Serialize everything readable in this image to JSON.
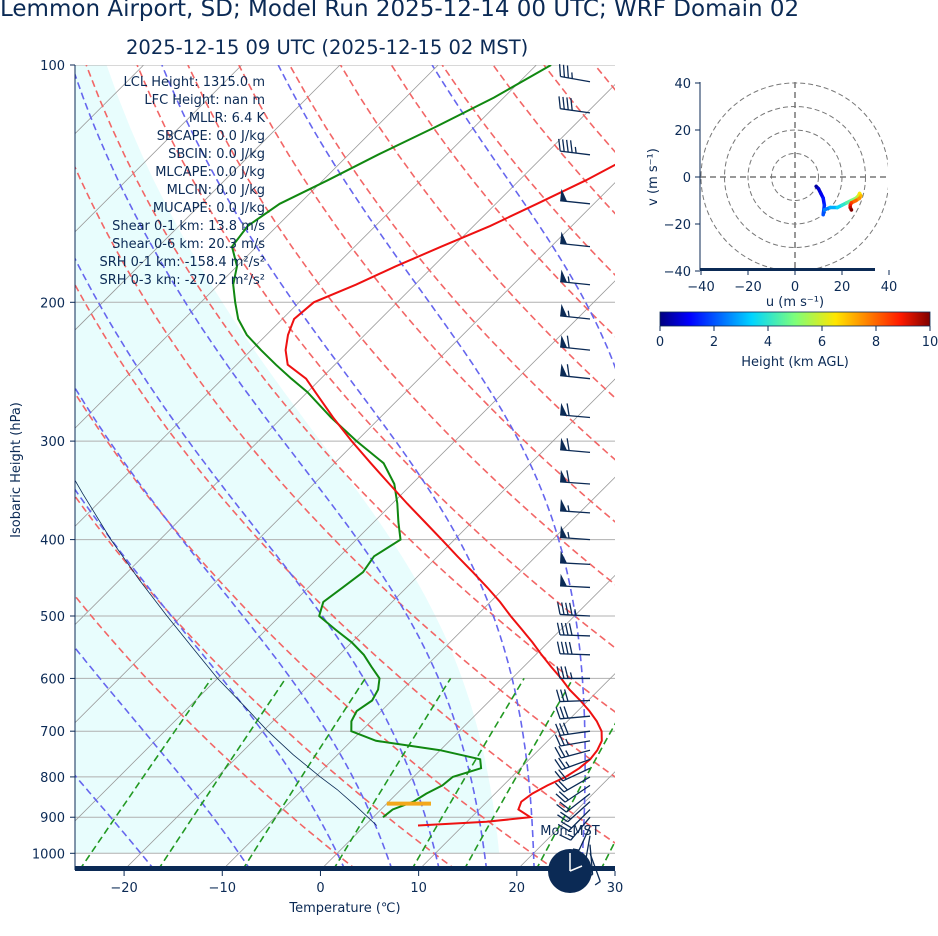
{
  "title": "Lemmon Airport, SD; Model Run 2025-12-14 00 UTC; WRF Domain 02",
  "subtitle": "2025-12-15 09 UTC  (2025-12-15 02 MST)",
  "colors": {
    "temperature": "#ee1111",
    "dewpoint": "#118811",
    "dry_adiabat": "#f26666",
    "moist_adiabat": "#6666ee",
    "mixing_ratio": "#229922",
    "isotherm": "#999999",
    "cape_shade": "#e8fdfd",
    "lcl_marker": "#f3a81b",
    "navy": "#0b2a55"
  },
  "clock": {
    "label": "Mon-MST",
    "icon": "clock-icon"
  },
  "indices": [
    "LCL Height: 1315.0 m",
    "LFC Height: nan m",
    "MLLR: 6.4 K",
    "SBCAPE: 0.0 J/kg",
    "SBCIN: 0.0 J/kg",
    "MLCAPE: 0.0 J/kg",
    "MLCIN: 0.0 J/kg",
    "MUCAPE: 0.0 J/kg",
    "Shear 0-1 km: 13.8 m/s",
    "Shear 0-6 km: 20.3 m/s",
    "SRH 0-1 km: -158.4 m²/s²",
    "SRH 0-3 km: -270.2 m²/s²"
  ],
  "chart_data": [
    {
      "type": "line",
      "name": "skew-t",
      "xlabel": "Temperature (℃)",
      "ylabel": "Isobaric Height (hPa)",
      "xlim": [
        -25,
        30
      ],
      "ylim": [
        1050,
        100
      ],
      "y_log": true,
      "x_ticks": [
        -20,
        -10,
        0,
        10,
        20,
        30
      ],
      "y_ticks": [
        100,
        200,
        300,
        400,
        500,
        600,
        700,
        800,
        900,
        1000
      ],
      "grid": "horizontal at pressure ticks",
      "series": [
        {
          "key": "temperature",
          "p": [
            922,
            912,
            900,
            880,
            860,
            840,
            820,
            800,
            780,
            760,
            740,
            720,
            700,
            680,
            660,
            640,
            620,
            600,
            580,
            560,
            540,
            520,
            500,
            480,
            460,
            440,
            420,
            400,
            380,
            360,
            340,
            320,
            300,
            280,
            260,
            250,
            240,
            230,
            220,
            210,
            200,
            190,
            180,
            170,
            160,
            150,
            140,
            130,
            120,
            110,
            100
          ],
          "values": [
            5.4,
            12.0,
            16.0,
            14.0,
            13.5,
            13.8,
            14.5,
            15.5,
            16.0,
            16.2,
            16.0,
            15.5,
            14.5,
            13.0,
            11.2,
            9.2,
            7.0,
            5.0,
            2.8,
            0.6,
            -1.6,
            -4.0,
            -6.5,
            -9.0,
            -11.8,
            -14.8,
            -18.0,
            -21.3,
            -24.8,
            -28.5,
            -32.3,
            -36.3,
            -40.5,
            -44.8,
            -49.2,
            -51.5,
            -54.8,
            -56.5,
            -57.8,
            -58.8,
            -58.5,
            -56.0,
            -53.8,
            -51.2,
            -48.3,
            -45.8,
            -43.2,
            -40.9,
            -38.7,
            -37.1,
            -36.0
          ]
        },
        {
          "key": "dewpoint",
          "p": [
            900,
            880,
            860,
            840,
            820,
            800,
            780,
            760,
            740,
            720,
            700,
            680,
            660,
            640,
            620,
            600,
            580,
            560,
            540,
            520,
            500,
            480,
            460,
            440,
            420,
            400,
            380,
            360,
            340,
            320,
            300,
            280,
            260,
            250,
            240,
            230,
            220,
            210,
            200,
            190,
            180,
            170,
            160,
            150,
            140,
            130,
            120,
            110,
            100
          ],
          "values": [
            1.0,
            1.2,
            2.5,
            3.0,
            3.8,
            4.0,
            6.0,
            5.0,
            0.0,
            -7.5,
            -11.0,
            -12.0,
            -12.5,
            -12.0,
            -12.5,
            -13.5,
            -15.5,
            -17.5,
            -20.0,
            -23.0,
            -26.0,
            -27.0,
            -26.5,
            -26.0,
            -26.5,
            -25.5,
            -27.5,
            -29.5,
            -31.8,
            -35.0,
            -40.0,
            -45.0,
            -50.0,
            -53.0,
            -56.0,
            -59.0,
            -62.0,
            -64.5,
            -66.5,
            -68.5,
            -70.0,
            -72.5,
            -73.0,
            -72.0,
            -69.5,
            -67.0,
            -64.0,
            -61.0,
            -58.5
          ]
        }
      ],
      "parcel_profile": {
        "p": [
          922,
          870,
          830,
          800,
          750,
          700,
          650,
          600,
          550,
          500,
          450,
          400,
          350,
          300
        ],
        "values": [
          1.2,
          -3.0,
          -6.5,
          -9.5,
          -14.5,
          -19.5,
          -24.5,
          -30.0,
          -35.5,
          -41.5,
          -48.0,
          -55.0,
          -62.5,
          -71.0
        ]
      },
      "lcl_pressure_hpa": 865,
      "dry_adiabats_theta_K": [
        273,
        283,
        293,
        303,
        313,
        323,
        333,
        343,
        353,
        363,
        373,
        383,
        393,
        403,
        413,
        423,
        433
      ],
      "moist_adiabats_start_C": [
        -20,
        -10,
        0,
        5,
        10,
        15,
        20,
        25,
        30,
        35
      ],
      "mixing_ratios_gkg": [
        0.5,
        1,
        2,
        4,
        7,
        10,
        16,
        24
      ],
      "wind_barbs": {
        "p": [
          1000,
          975,
          950,
          925,
          900,
          880,
          860,
          840,
          820,
          800,
          780,
          760,
          740,
          720,
          700,
          670,
          640,
          600,
          560,
          530,
          500,
          460,
          430,
          400,
          370,
          340,
          310,
          280,
          250,
          230,
          210,
          190,
          170,
          150,
          130,
          115,
          105
        ],
        "speed_kt": [
          8,
          14,
          16,
          16,
          18,
          20,
          22,
          22,
          24,
          24,
          24,
          25,
          25,
          25,
          30,
          30,
          30,
          35,
          40,
          40,
          45,
          50,
          50,
          55,
          55,
          60,
          60,
          60,
          60,
          60,
          55,
          55,
          50,
          50,
          45,
          40,
          35
        ],
        "dir_deg": [
          160,
          175,
          190,
          205,
          220,
          225,
          228,
          232,
          236,
          240,
          245,
          250,
          255,
          260,
          262,
          265,
          268,
          270,
          272,
          272,
          273,
          273,
          273,
          274,
          274,
          274,
          275,
          275,
          276,
          276,
          276,
          276,
          276,
          276,
          277,
          278,
          280
        ]
      }
    },
    {
      "type": "line",
      "name": "hodograph",
      "xlabel": "u (m s⁻¹)",
      "ylabel": "v (m s⁻¹)",
      "xlim": [
        -40,
        40
      ],
      "ylim": [
        -40,
        40
      ],
      "x_ticks": [
        -40,
        -20,
        0,
        20,
        40
      ],
      "y_ticks": [
        -40,
        -20,
        0,
        20,
        40
      ],
      "rings": [
        10,
        20,
        30,
        40
      ],
      "series": [
        {
          "height_km": [
            0.0,
            0.3,
            0.7,
            1.0,
            1.3,
            1.6,
            2.0,
            2.5,
            3.0,
            3.5,
            4.0,
            4.5,
            5.0,
            5.5,
            6.0,
            6.5,
            7.0,
            7.5,
            8.0,
            8.5,
            9.0,
            9.5,
            10.0
          ],
          "u": [
            9,
            10,
            11,
            12,
            12.5,
            12.0,
            12.5,
            15,
            18,
            20,
            22,
            24,
            26,
            27,
            27.5,
            28,
            27.5,
            26,
            24,
            23.5,
            23.5,
            24,
            24
          ],
          "v": [
            -4,
            -5,
            -7,
            -9,
            -12,
            -16,
            -14,
            -13,
            -13,
            -12,
            -11,
            -10,
            -9,
            -8,
            -7,
            -8,
            -9,
            -10,
            -11,
            -12,
            -13,
            -14,
            -14
          ]
        }
      ]
    },
    {
      "type": "colorbar",
      "name": "height-colorbar",
      "label": "Height (km AGL)",
      "range": [
        0,
        10
      ],
      "ticks": [
        0,
        2,
        4,
        6,
        8,
        10
      ],
      "colormap": "jet"
    }
  ]
}
